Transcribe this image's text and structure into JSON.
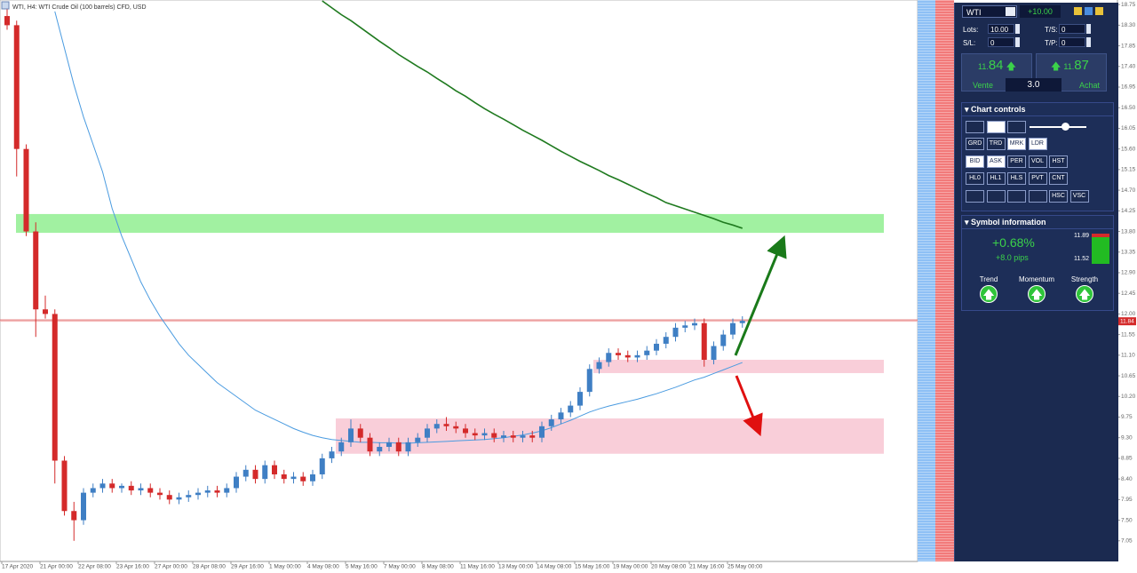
{
  "chart_data": {
    "type": "candlestick",
    "title": "WTI, H4: WTI Crude Oil (100 barrels) CFD, USD",
    "x_labels": [
      "17 Apr 2020",
      "21 Apr 00:00",
      "22 Apr 08:00",
      "23 Apr 16:00",
      "27 Apr 00:00",
      "28 Apr 08:00",
      "29 Apr 16:00",
      "1 May 00:00",
      "4 May 08:00",
      "5 May 16:00",
      "7 May 00:00",
      "8 May 08:00",
      "11 May 16:00",
      "13 May 00:00",
      "14 May 08:00",
      "15 May 16:00",
      "19 May 00:00",
      "20 May 08:00",
      "21 May 16:00",
      "25 May 00:00"
    ],
    "open": [
      18.5,
      18.3,
      15.6,
      13.8,
      12.1,
      12.0,
      8.8,
      7.7,
      7.5,
      8.1,
      8.2,
      8.3,
      8.2,
      8.25,
      8.15,
      8.2,
      8.1,
      8.05,
      7.95,
      8.0,
      8.05,
      8.1,
      8.15,
      8.1,
      8.2,
      8.45,
      8.6,
      8.4,
      8.7,
      8.5,
      8.4,
      8.45,
      8.35,
      8.5,
      8.85,
      9.0,
      9.2,
      9.5,
      9.3,
      9.0,
      9.1,
      9.2,
      9.0,
      9.2,
      9.3,
      9.5,
      9.6,
      9.55,
      9.5,
      9.4,
      9.35,
      9.4,
      9.3,
      9.35,
      9.3,
      9.35,
      9.3,
      9.55,
      9.7,
      9.85,
      10.0,
      10.3,
      10.8,
      10.95,
      11.15,
      11.1,
      11.05,
      11.1,
      11.2,
      11.35,
      11.5,
      11.7,
      11.75,
      11.8,
      11.0,
      11.3,
      11.55,
      11.8
    ],
    "high": [
      18.75,
      18.4,
      15.7,
      14.0,
      12.4,
      12.1,
      8.9,
      7.9,
      8.2,
      8.3,
      8.4,
      8.4,
      8.3,
      8.35,
      8.3,
      8.3,
      8.2,
      8.15,
      8.1,
      8.15,
      8.2,
      8.25,
      8.25,
      8.3,
      8.55,
      8.7,
      8.7,
      8.8,
      8.8,
      8.6,
      8.55,
      8.55,
      8.6,
      8.95,
      9.1,
      9.3,
      9.7,
      9.6,
      9.4,
      9.2,
      9.3,
      9.3,
      9.3,
      9.4,
      9.6,
      9.7,
      9.75,
      9.65,
      9.6,
      9.5,
      9.5,
      9.5,
      9.45,
      9.45,
      9.45,
      9.45,
      9.65,
      9.8,
      9.95,
      10.1,
      10.4,
      10.9,
      11.05,
      11.25,
      11.25,
      11.2,
      11.2,
      11.3,
      11.45,
      11.6,
      11.8,
      11.85,
      11.9,
      11.9,
      11.4,
      11.65,
      11.9,
      11.95
    ],
    "low": [
      18.2,
      15.0,
      13.7,
      11.5,
      11.9,
      8.3,
      7.6,
      7.05,
      7.4,
      8.0,
      8.1,
      8.1,
      8.1,
      8.05,
      8.05,
      8.0,
      7.95,
      7.85,
      7.85,
      7.9,
      7.95,
      8.0,
      8.0,
      8.0,
      8.1,
      8.35,
      8.3,
      8.3,
      8.4,
      8.3,
      8.3,
      8.25,
      8.25,
      8.4,
      8.75,
      8.9,
      9.1,
      9.2,
      8.9,
      8.9,
      9.0,
      8.9,
      8.9,
      9.1,
      9.2,
      9.4,
      9.45,
      9.4,
      9.3,
      9.25,
      9.25,
      9.2,
      9.2,
      9.2,
      9.2,
      9.2,
      9.2,
      9.45,
      9.6,
      9.75,
      9.9,
      10.2,
      10.7,
      10.85,
      11.0,
      10.95,
      10.95,
      11.0,
      11.1,
      11.25,
      11.4,
      11.6,
      11.65,
      10.85,
      10.9,
      11.2,
      11.45,
      11.7
    ],
    "close": [
      18.3,
      15.6,
      13.8,
      12.1,
      12.0,
      8.8,
      7.7,
      7.5,
      8.1,
      8.2,
      8.3,
      8.2,
      8.25,
      8.15,
      8.2,
      8.1,
      8.05,
      7.95,
      8.0,
      8.05,
      8.1,
      8.15,
      8.1,
      8.2,
      8.45,
      8.6,
      8.4,
      8.7,
      8.5,
      8.4,
      8.45,
      8.35,
      8.5,
      8.85,
      9.0,
      9.2,
      9.5,
      9.3,
      9.0,
      9.1,
      9.2,
      9.0,
      9.2,
      9.3,
      9.5,
      9.6,
      9.55,
      9.5,
      9.4,
      9.35,
      9.4,
      9.3,
      9.35,
      9.3,
      9.35,
      9.3,
      9.55,
      9.7,
      9.85,
      10.0,
      10.3,
      10.8,
      10.95,
      11.15,
      11.1,
      11.05,
      11.1,
      11.2,
      11.35,
      11.5,
      11.7,
      11.75,
      11.8,
      11.0,
      11.3,
      11.55,
      11.8,
      11.85
    ],
    "up_color": "#3f7fc4",
    "down_color": "#d42a2a",
    "lines": [
      {
        "color": "#4a9be0",
        "values": [
          null,
          null,
          null,
          null,
          null,
          18.6,
          17.8,
          17.0,
          16.3,
          15.7,
          15.1,
          14.3,
          13.7,
          13.2,
          12.7,
          12.3,
          11.95,
          11.65,
          11.35,
          11.1,
          10.9,
          10.7,
          10.5,
          10.35,
          10.2,
          10.05,
          9.9,
          9.8,
          9.7,
          9.6,
          9.5,
          9.42,
          9.35,
          9.3,
          9.26,
          9.24,
          9.22,
          9.2,
          9.2,
          9.19,
          9.19,
          9.18,
          9.18,
          9.19,
          9.2,
          9.21,
          9.22,
          9.23,
          9.24,
          9.25,
          9.26,
          9.28,
          9.3,
          9.33,
          9.36,
          9.4,
          9.45,
          9.52,
          9.6,
          9.68,
          9.77,
          9.86,
          9.93,
          9.99,
          10.04,
          10.09,
          10.14,
          10.2,
          10.26,
          10.33,
          10.4,
          10.48,
          10.56,
          10.62,
          10.7,
          10.78,
          10.86,
          10.94
        ]
      },
      {
        "color": "#1f7a1f",
        "values": [
          null,
          null,
          null,
          null,
          null,
          null,
          null,
          null,
          null,
          null,
          null,
          null,
          null,
          null,
          null,
          null,
          null,
          null,
          null,
          null,
          null,
          null,
          null,
          null,
          null,
          null,
          null,
          null,
          null,
          null,
          null,
          null,
          null,
          18.83,
          18.68,
          18.53,
          18.4,
          18.25,
          18.1,
          17.95,
          17.81,
          17.66,
          17.53,
          17.4,
          17.28,
          17.14,
          17.01,
          16.87,
          16.75,
          16.61,
          16.48,
          16.36,
          16.25,
          16.13,
          16.01,
          15.9,
          15.79,
          15.67,
          15.55,
          15.44,
          15.33,
          15.23,
          15.13,
          15.02,
          14.93,
          14.83,
          14.73,
          14.63,
          14.54,
          14.43,
          14.36,
          14.29,
          14.22,
          14.15,
          14.08,
          14.0,
          13.94,
          13.87
        ]
      }
    ],
    "zones": [
      {
        "low": 13.77,
        "high": 14.18,
        "color": "#90ee90"
      },
      {
        "low": 10.71,
        "high": 11.0,
        "color": "#f8c6d2"
      },
      {
        "low": 8.95,
        "high": 9.72,
        "color": "#f8c6d2"
      }
    ],
    "ask_price": 11.87,
    "last_price": 11.84,
    "ylim": [
      6.6,
      18.85
    ],
    "yticks": [
      18.75,
      {
        "value": 18.3,
        "label": "18.30"
      },
      17.85,
      {
        "value": 17.4,
        "label": "17.40"
      },
      16.95,
      {
        "value": 16.5,
        "label": "16.50"
      },
      16.05,
      {
        "value": 15.6,
        "label": "15.60"
      },
      15.15,
      {
        "value": 14.7,
        "label": "14.70"
      },
      14.25,
      {
        "value": 13.8,
        "label": "13.80"
      },
      13.35,
      {
        "value": 12.9,
        "label": "12.90"
      },
      12.45,
      {
        "value": 12.0,
        "label": "12.00"
      },
      11.55,
      {
        "value": 11.1,
        "label": "11.10"
      },
      10.65,
      {
        "value": 10.2,
        "label": "10.20"
      },
      9.75,
      {
        "value": 9.3,
        "label": "9.30"
      },
      8.85,
      {
        "value": 8.4,
        "label": "8.40"
      },
      7.95,
      {
        "value": 7.5,
        "label": "7.50"
      },
      7.05
    ],
    "grid": false
  },
  "panel": {
    "symbol": "WTI",
    "change": "+10.00",
    "lots_label": "Lots:",
    "lots": "10.00",
    "ts_label": "T/S:",
    "ts": "0",
    "sl_label": "S/L:",
    "sl": "0",
    "tp_label": "T/P:",
    "tp": "0",
    "sell": {
      "small": "11.",
      "big": "84",
      "label": "Vente"
    },
    "spread": "3.0",
    "buy": {
      "small": "11.",
      "big": "87",
      "label": "Achat"
    },
    "controls_title": "Chart controls",
    "buttons": [
      [
        "GRD",
        "TRD",
        "MRK",
        "LDR"
      ],
      [
        "BID",
        "ASK",
        "PER",
        "VOL",
        "HST"
      ],
      [
        "HL0",
        "HL1",
        "HLS",
        "PVT",
        "CNT"
      ],
      [
        "HSC",
        "VSC"
      ]
    ],
    "symbol_info_title": "Symbol information",
    "change_pct": "+0.68%",
    "pips": "+8.0 pips",
    "range_high": "11.89",
    "range_low": "11.52",
    "indicators": [
      "Trend",
      "Momentum",
      "Strength"
    ]
  }
}
